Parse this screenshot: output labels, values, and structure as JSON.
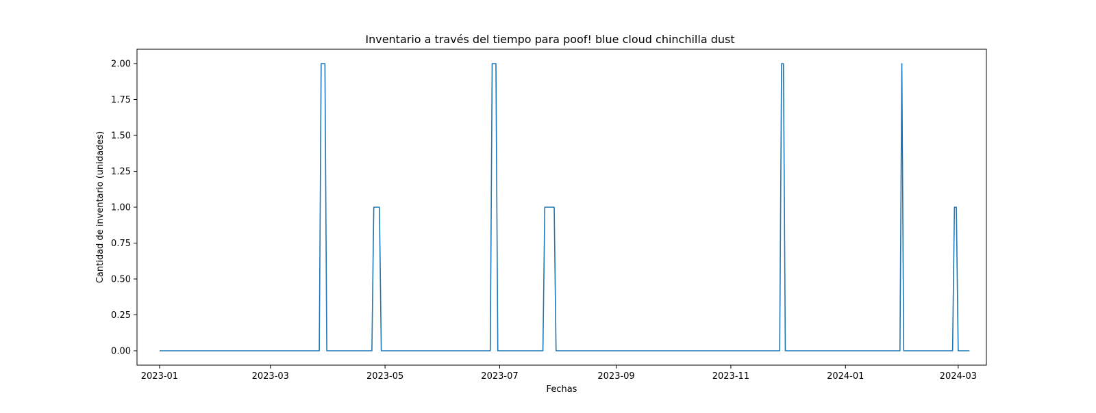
{
  "chart_data": {
    "type": "line",
    "title": "Inventario a través del tiempo para poof! blue cloud chinchilla dust",
    "xlabel": "Fechas",
    "ylabel": "Cantidad de inventario (unidades)",
    "x_type": "date",
    "xlim": [
      "2022-12-20",
      "2024-03-16"
    ],
    "ylim": [
      -0.1,
      2.1
    ],
    "grid": false,
    "line_color": "#1f77b4",
    "x_ticks": [
      "2023-01-01",
      "2023-03-01",
      "2023-05-01",
      "2023-07-01",
      "2023-09-01",
      "2023-11-01",
      "2024-01-01",
      "2024-03-01"
    ],
    "x_tick_labels": [
      "2023-01",
      "2023-03",
      "2023-05",
      "2023-07",
      "2023-09",
      "2023-11",
      "2024-01",
      "2024-03"
    ],
    "y_ticks": [
      0.0,
      0.25,
      0.5,
      0.75,
      1.0,
      1.25,
      1.5,
      1.75,
      2.0
    ],
    "y_tick_labels": [
      "0.00",
      "0.25",
      "0.50",
      "0.75",
      "1.00",
      "1.25",
      "1.50",
      "1.75",
      "2.00"
    ],
    "series": [
      {
        "x": [
          "2023-01-01",
          "2023-03-27",
          "2023-03-28",
          "2023-03-30",
          "2023-03-31",
          "2023-04-24",
          "2023-04-25",
          "2023-04-28",
          "2023-04-29",
          "2023-06-26",
          "2023-06-27",
          "2023-06-29",
          "2023-06-30",
          "2023-07-24",
          "2023-07-25",
          "2023-07-30",
          "2023-07-31",
          "2023-11-27",
          "2023-11-28",
          "2023-11-29",
          "2023-11-30",
          "2024-01-30",
          "2024-01-31",
          "2024-02-01",
          "2024-02-27",
          "2024-02-28",
          "2024-02-29",
          "2024-03-01",
          "2024-03-07"
        ],
        "y": [
          0,
          0,
          2,
          2,
          0,
          0,
          1,
          1,
          0,
          0,
          2,
          2,
          0,
          0,
          1,
          1,
          0,
          0,
          2,
          2,
          0,
          0,
          2,
          0,
          0,
          1,
          1,
          0,
          0
        ]
      }
    ]
  }
}
